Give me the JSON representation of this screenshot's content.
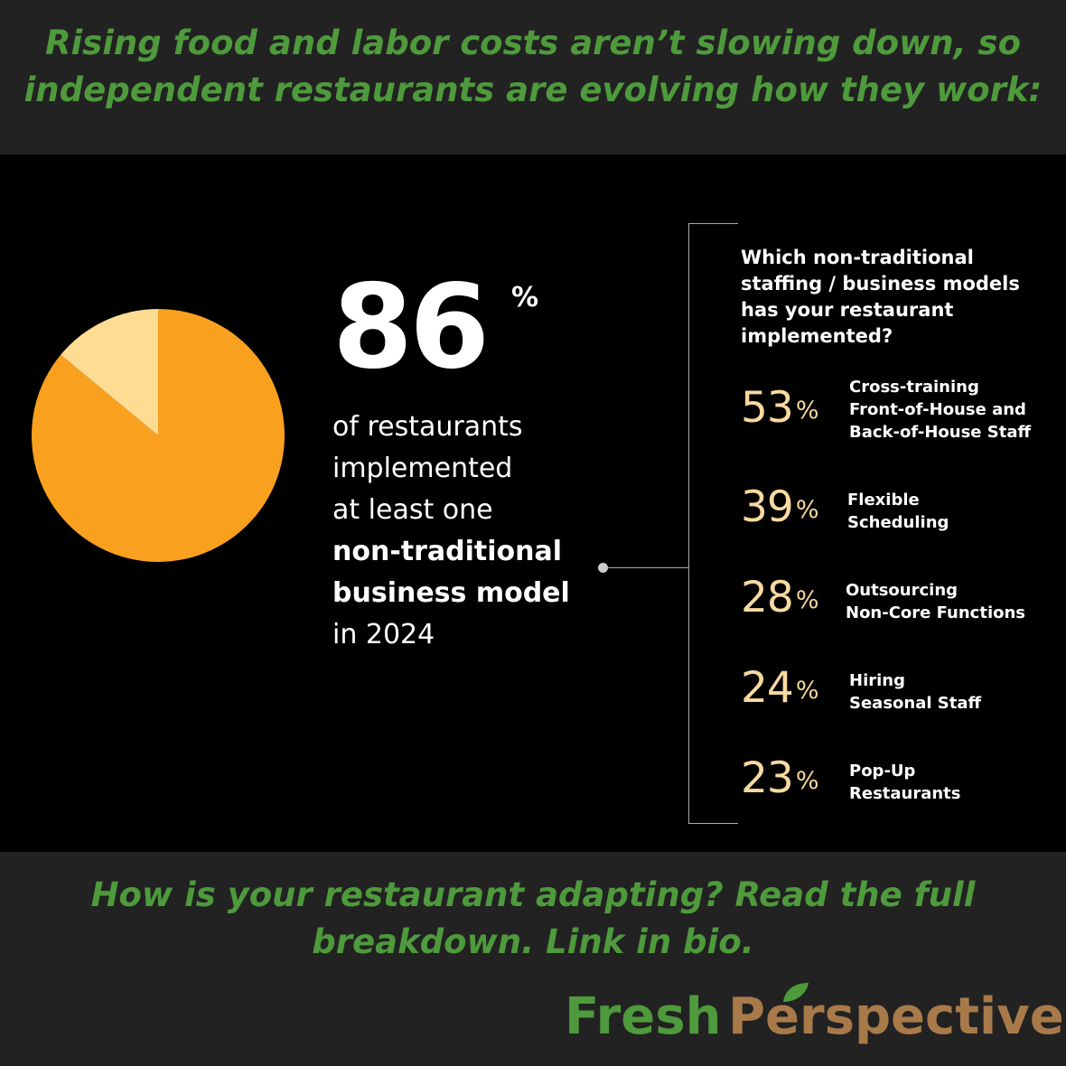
{
  "headline": {
    "line1": "Rising food and labor costs aren’t slowing down, so",
    "line2": "independent restaurants are evolving how they work:"
  },
  "main_stat": {
    "value": "86",
    "unit": "%",
    "desc1": "of restaurants",
    "desc2": "implemented",
    "desc3": "at least one",
    "desc_bold1": "non-traditional",
    "desc_bold2": "business model",
    "desc4": "in 2024"
  },
  "question": {
    "line1": "Which non-traditional",
    "line2": "staffing / business models",
    "line3": "has your restaurant",
    "line4": "implemented?"
  },
  "stats": [
    {
      "value": "53",
      "unit": "%",
      "label_lines": [
        "Cross-training",
        "Front-of-House and",
        "Back-of-House Staff"
      ]
    },
    {
      "value": "39",
      "unit": "%",
      "label_lines": [
        "Flexible",
        "Scheduling"
      ]
    },
    {
      "value": "28",
      "unit": "%",
      "label_lines": [
        "Outsourcing",
        "Non-Core Functions"
      ]
    },
    {
      "value": "24",
      "unit": "%",
      "label_lines": [
        "Hiring",
        "Seasonal Staff"
      ]
    },
    {
      "value": "23",
      "unit": "%",
      "label_lines": [
        "Pop-Up",
        "Restaurants"
      ]
    }
  ],
  "chart_data": {
    "type": "pie",
    "values": [
      86,
      14
    ],
    "colors": [
      "#f9a11f",
      "#fedc91"
    ]
  },
  "footer": {
    "line1": "How is your restaurant adapting? Read the full",
    "line2": "breakdown. Link in bio."
  },
  "logo": {
    "fresh": "Fresh",
    "perspective": "Perspective"
  },
  "colors": {
    "headline_green": "#4e9a3c",
    "stat_cream": "#f8d9a0",
    "logo_brown": "#a87a4a"
  }
}
